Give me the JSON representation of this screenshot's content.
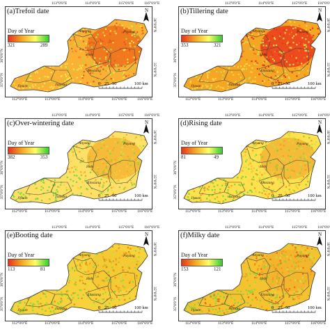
{
  "legend_title": "Day of Year",
  "colors": {
    "early": "#e8341c",
    "mid": "#f5a623",
    "late": "#ffff66",
    "green": "#33cc33",
    "boundary": "#444444"
  },
  "panels": [
    {
      "title": "(a)Trefoil date",
      "min": "321",
      "max": "289"
    },
    {
      "title": "(b)Tillering date",
      "min": "353",
      "max": "321"
    },
    {
      "title": "(c)Over-wintering date",
      "min": "382",
      "max": "353"
    },
    {
      "title": "(d)Rising date",
      "min": "81",
      "max": "49"
    },
    {
      "title": "(e)Booting date",
      "min": "113",
      "max": "81"
    },
    {
      "title": "(f)Milky date",
      "min": "153",
      "max": "121"
    }
  ],
  "axes": {
    "top_ticks": [
      "112°0'0\"E",
      "113°0'0\"E",
      "114°0'0\"E",
      "115°0'0\"E",
      "116°0'0\"E"
    ],
    "bottom_ticks": [
      "112°0'0\"E",
      "113°0'0\"E",
      "114°0'0\"E",
      "115°0'0\"E",
      "116°0'0\"E"
    ],
    "left_ticks": [
      "36°0'0\"N",
      "35°0'0\"N"
    ],
    "right_ticks": [
      "36°0'0\"N",
      "35°0'0\"N"
    ]
  },
  "places": [
    "Anyang",
    "Puyang",
    "Hebi",
    "Xinxiang",
    "Jiyuan",
    "Jiaozuo"
  ],
  "scale": {
    "labels": [
      "0",
      "25",
      "50",
      "100 km"
    ]
  },
  "north_label": "N"
}
